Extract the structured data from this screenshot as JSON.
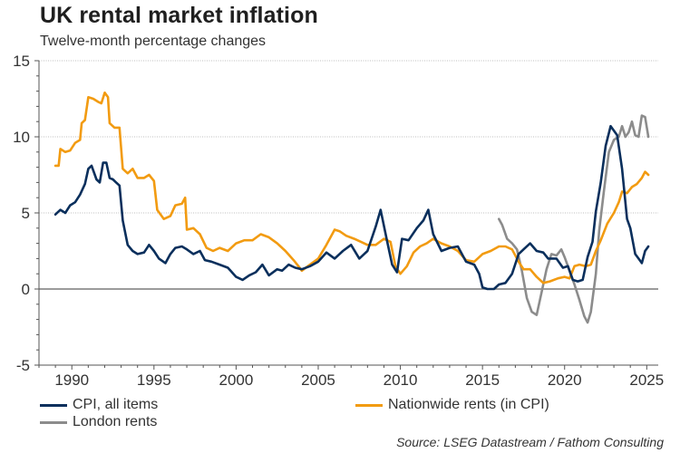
{
  "title": "UK rental market inflation",
  "subtitle": "Twelve-month percentage changes",
  "source": "Source: LSEG Datastream / Fathom Consulting",
  "chart_data": {
    "type": "line",
    "title": "UK rental market inflation",
    "subtitle": "Twelve-month percentage changes",
    "xlabel": "",
    "ylabel": "",
    "xlim": [
      1988,
      2025.7
    ],
    "ylim": [
      -5,
      15
    ],
    "xticks": [
      1990,
      1995,
      2000,
      2005,
      2010,
      2015,
      2020,
      2025
    ],
    "yticks": [
      -5,
      0,
      5,
      10,
      15
    ],
    "grid": "horizontal dotted",
    "legend_position": "bottom",
    "series": [
      {
        "name": "CPI, all items",
        "color": "#0a2f5c",
        "points": [
          [
            1989.0,
            4.9
          ],
          [
            1989.3,
            5.2
          ],
          [
            1989.6,
            5.0
          ],
          [
            1989.9,
            5.5
          ],
          [
            1990.2,
            5.7
          ],
          [
            1990.5,
            6.2
          ],
          [
            1990.8,
            6.9
          ],
          [
            1991.0,
            7.9
          ],
          [
            1991.2,
            8.1
          ],
          [
            1991.5,
            7.2
          ],
          [
            1991.7,
            7.0
          ],
          [
            1991.9,
            8.3
          ],
          [
            1992.1,
            8.3
          ],
          [
            1992.3,
            7.3
          ],
          [
            1992.5,
            7.2
          ],
          [
            1992.7,
            7.0
          ],
          [
            1992.9,
            6.8
          ],
          [
            1993.1,
            4.5
          ],
          [
            1993.4,
            2.9
          ],
          [
            1993.7,
            2.5
          ],
          [
            1994.0,
            2.3
          ],
          [
            1994.4,
            2.4
          ],
          [
            1994.7,
            2.9
          ],
          [
            1995.0,
            2.5
          ],
          [
            1995.3,
            2.0
          ],
          [
            1995.7,
            1.7
          ],
          [
            1996.0,
            2.3
          ],
          [
            1996.3,
            2.7
          ],
          [
            1996.7,
            2.8
          ],
          [
            1997.0,
            2.6
          ],
          [
            1997.4,
            2.3
          ],
          [
            1997.8,
            2.5
          ],
          [
            1998.1,
            1.9
          ],
          [
            1998.5,
            1.8
          ],
          [
            1999.0,
            1.6
          ],
          [
            1999.5,
            1.4
          ],
          [
            2000.0,
            0.8
          ],
          [
            2000.4,
            0.6
          ],
          [
            2000.8,
            0.9
          ],
          [
            2001.2,
            1.1
          ],
          [
            2001.6,
            1.6
          ],
          [
            2002.0,
            0.9
          ],
          [
            2002.5,
            1.3
          ],
          [
            2002.8,
            1.2
          ],
          [
            2003.2,
            1.6
          ],
          [
            2003.6,
            1.4
          ],
          [
            2004.0,
            1.3
          ],
          [
            2004.5,
            1.5
          ],
          [
            2005.0,
            1.8
          ],
          [
            2005.5,
            2.4
          ],
          [
            2006.0,
            2.0
          ],
          [
            2006.5,
            2.5
          ],
          [
            2007.0,
            2.9
          ],
          [
            2007.5,
            2.0
          ],
          [
            2008.0,
            2.5
          ],
          [
            2008.5,
            4.1
          ],
          [
            2008.8,
            5.2
          ],
          [
            2009.2,
            3.1
          ],
          [
            2009.5,
            1.6
          ],
          [
            2009.8,
            1.1
          ],
          [
            2010.1,
            3.3
          ],
          [
            2010.5,
            3.2
          ],
          [
            2011.0,
            4.0
          ],
          [
            2011.4,
            4.5
          ],
          [
            2011.7,
            5.2
          ],
          [
            2012.0,
            3.6
          ],
          [
            2012.5,
            2.5
          ],
          [
            2013.0,
            2.7
          ],
          [
            2013.5,
            2.8
          ],
          [
            2014.0,
            1.8
          ],
          [
            2014.5,
            1.6
          ],
          [
            2014.8,
            1.0
          ],
          [
            2015.0,
            0.1
          ],
          [
            2015.3,
            0.0
          ],
          [
            2015.7,
            0.0
          ],
          [
            2016.0,
            0.3
          ],
          [
            2016.4,
            0.4
          ],
          [
            2016.8,
            1.0
          ],
          [
            2017.2,
            2.3
          ],
          [
            2017.5,
            2.6
          ],
          [
            2017.9,
            3.0
          ],
          [
            2018.3,
            2.5
          ],
          [
            2018.7,
            2.4
          ],
          [
            2019.0,
            2.0
          ],
          [
            2019.5,
            2.0
          ],
          [
            2019.9,
            1.4
          ],
          [
            2020.2,
            1.5
          ],
          [
            2020.5,
            0.6
          ],
          [
            2020.8,
            0.5
          ],
          [
            2021.1,
            0.6
          ],
          [
            2021.4,
            2.1
          ],
          [
            2021.7,
            3.1
          ],
          [
            2021.9,
            5.1
          ],
          [
            2022.2,
            7.0
          ],
          [
            2022.5,
            9.4
          ],
          [
            2022.8,
            10.7
          ],
          [
            2023.0,
            10.4
          ],
          [
            2023.2,
            10.1
          ],
          [
            2023.5,
            7.9
          ],
          [
            2023.8,
            4.6
          ],
          [
            2024.0,
            4.0
          ],
          [
            2024.3,
            2.3
          ],
          [
            2024.5,
            2.0
          ],
          [
            2024.7,
            1.7
          ],
          [
            2024.9,
            2.5
          ],
          [
            2025.1,
            2.8
          ]
        ]
      },
      {
        "name": "Nationwide rents (in CPI)",
        "color": "#f29b11",
        "points": [
          [
            1989.0,
            8.1
          ],
          [
            1989.2,
            8.1
          ],
          [
            1989.3,
            9.2
          ],
          [
            1989.6,
            9.0
          ],
          [
            1989.9,
            9.1
          ],
          [
            1990.2,
            9.6
          ],
          [
            1990.5,
            9.8
          ],
          [
            1990.6,
            10.9
          ],
          [
            1990.8,
            11.1
          ],
          [
            1991.0,
            12.6
          ],
          [
            1991.3,
            12.5
          ],
          [
            1991.6,
            12.3
          ],
          [
            1991.8,
            12.2
          ],
          [
            1992.0,
            12.9
          ],
          [
            1992.2,
            12.6
          ],
          [
            1992.3,
            10.9
          ],
          [
            1992.6,
            10.6
          ],
          [
            1992.9,
            10.6
          ],
          [
            1993.1,
            7.9
          ],
          [
            1993.4,
            7.6
          ],
          [
            1993.7,
            7.9
          ],
          [
            1994.0,
            7.3
          ],
          [
            1994.4,
            7.3
          ],
          [
            1994.7,
            7.5
          ],
          [
            1995.0,
            7.1
          ],
          [
            1995.2,
            5.2
          ],
          [
            1995.6,
            4.6
          ],
          [
            1996.0,
            4.8
          ],
          [
            1996.3,
            5.5
          ],
          [
            1996.7,
            5.6
          ],
          [
            1996.9,
            6.0
          ],
          [
            1997.0,
            3.9
          ],
          [
            1997.4,
            4.0
          ],
          [
            1997.8,
            3.6
          ],
          [
            1998.2,
            2.7
          ],
          [
            1998.6,
            2.5
          ],
          [
            1999.0,
            2.7
          ],
          [
            1999.5,
            2.5
          ],
          [
            2000.0,
            3.0
          ],
          [
            2000.5,
            3.2
          ],
          [
            2001.0,
            3.2
          ],
          [
            2001.5,
            3.6
          ],
          [
            2002.0,
            3.4
          ],
          [
            2002.5,
            3.0
          ],
          [
            2003.0,
            2.5
          ],
          [
            2003.5,
            1.9
          ],
          [
            2003.8,
            1.5
          ],
          [
            2004.0,
            1.2
          ],
          [
            2004.5,
            1.6
          ],
          [
            2005.0,
            2.0
          ],
          [
            2005.5,
            2.9
          ],
          [
            2006.0,
            3.9
          ],
          [
            2006.3,
            3.8
          ],
          [
            2006.7,
            3.5
          ],
          [
            2007.2,
            3.3
          ],
          [
            2007.6,
            3.1
          ],
          [
            2008.0,
            2.9
          ],
          [
            2008.5,
            2.9
          ],
          [
            2009.0,
            3.3
          ],
          [
            2009.4,
            3.1
          ],
          [
            2009.7,
            1.5
          ],
          [
            2010.0,
            1.0
          ],
          [
            2010.4,
            1.5
          ],
          [
            2010.8,
            2.4
          ],
          [
            2011.2,
            2.8
          ],
          [
            2011.6,
            3.0
          ],
          [
            2012.0,
            3.3
          ],
          [
            2012.5,
            3.0
          ],
          [
            2013.0,
            2.8
          ],
          [
            2013.5,
            2.5
          ],
          [
            2014.0,
            1.9
          ],
          [
            2014.5,
            1.8
          ],
          [
            2015.0,
            2.3
          ],
          [
            2015.5,
            2.5
          ],
          [
            2016.0,
            2.8
          ],
          [
            2016.4,
            2.8
          ],
          [
            2016.8,
            2.6
          ],
          [
            2017.2,
            1.8
          ],
          [
            2017.5,
            1.3
          ],
          [
            2017.9,
            1.3
          ],
          [
            2018.3,
            0.8
          ],
          [
            2018.7,
            0.4
          ],
          [
            2019.1,
            0.5
          ],
          [
            2019.6,
            0.7
          ],
          [
            2020.0,
            0.8
          ],
          [
            2020.3,
            0.7
          ],
          [
            2020.6,
            1.5
          ],
          [
            2020.9,
            1.6
          ],
          [
            2021.3,
            1.5
          ],
          [
            2021.6,
            1.6
          ],
          [
            2021.9,
            2.5
          ],
          [
            2022.2,
            3.2
          ],
          [
            2022.6,
            4.3
          ],
          [
            2023.0,
            5.0
          ],
          [
            2023.3,
            5.7
          ],
          [
            2023.5,
            6.4
          ],
          [
            2023.8,
            6.3
          ],
          [
            2024.1,
            6.7
          ],
          [
            2024.4,
            6.9
          ],
          [
            2024.7,
            7.3
          ],
          [
            2024.9,
            7.7
          ],
          [
            2025.1,
            7.5
          ]
        ]
      },
      {
        "name": "London rents",
        "color": "#8c8c8c",
        "points": [
          [
            2016.0,
            4.6
          ],
          [
            2016.2,
            4.2
          ],
          [
            2016.5,
            3.3
          ],
          [
            2016.8,
            3.0
          ],
          [
            2017.1,
            2.6
          ],
          [
            2017.4,
            1.2
          ],
          [
            2017.7,
            -0.6
          ],
          [
            2018.0,
            -1.5
          ],
          [
            2018.3,
            -1.7
          ],
          [
            2018.6,
            -0.2
          ],
          [
            2018.9,
            1.3
          ],
          [
            2019.2,
            2.3
          ],
          [
            2019.5,
            2.2
          ],
          [
            2019.8,
            2.6
          ],
          [
            2020.0,
            2.1
          ],
          [
            2020.3,
            1.2
          ],
          [
            2020.6,
            0.3
          ],
          [
            2020.9,
            -0.7
          ],
          [
            2021.2,
            -1.8
          ],
          [
            2021.4,
            -2.2
          ],
          [
            2021.6,
            -1.5
          ],
          [
            2021.9,
            1.0
          ],
          [
            2022.1,
            3.8
          ],
          [
            2022.4,
            6.5
          ],
          [
            2022.7,
            9.0
          ],
          [
            2023.0,
            9.8
          ],
          [
            2023.3,
            10.0
          ],
          [
            2023.5,
            10.7
          ],
          [
            2023.7,
            10.0
          ],
          [
            2023.9,
            10.3
          ],
          [
            2024.1,
            11.0
          ],
          [
            2024.3,
            10.1
          ],
          [
            2024.5,
            10.0
          ],
          [
            2024.7,
            11.4
          ],
          [
            2024.9,
            11.3
          ],
          [
            2025.1,
            10.0
          ]
        ]
      }
    ]
  },
  "legend": [
    {
      "label": "CPI, all items",
      "color": "#0a2f5c"
    },
    {
      "label": "Nationwide rents (in CPI)",
      "color": "#f29b11"
    },
    {
      "label": "London rents",
      "color": "#8c8c8c"
    }
  ]
}
